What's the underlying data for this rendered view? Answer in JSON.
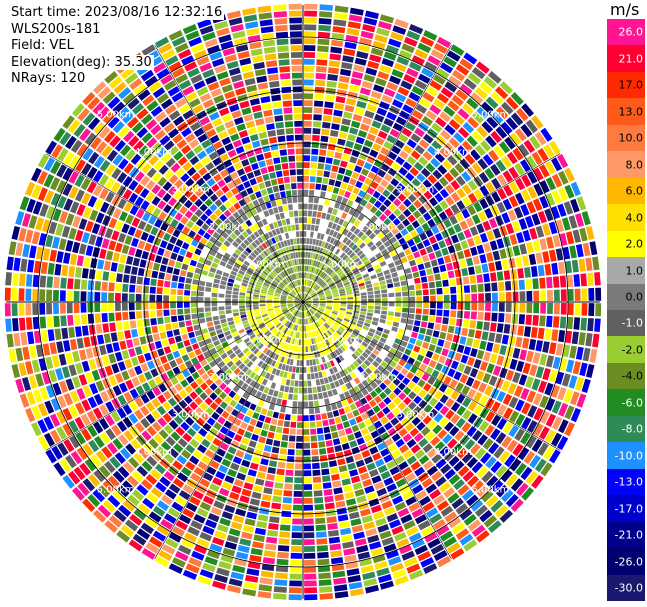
{
  "meta": {
    "start_time": "Start time: 2023/08/16 12:32:16",
    "station": "WLS200s-181",
    "field": "Field: VEL",
    "elevation": "Elevation(deg): 35.30",
    "nrays": "NRays: 120"
  },
  "chart_data": {
    "type": "heatmap",
    "projection": "polar-ppi",
    "field": "VEL",
    "unit": "m/s",
    "nrays": 120,
    "elevation_deg": 35.3,
    "range_rings_km": [
      1.0,
      2.0,
      3.0,
      4.0,
      5.0
    ],
    "range_labels": [
      "1.00km",
      "2.00km",
      "3.00km",
      "4.00km",
      "5.00km"
    ],
    "max_range_km": 5.6,
    "colorbar": {
      "labels": [
        "26.0",
        "21.0",
        "17.0",
        "13.0",
        "10.0",
        "8.0",
        "6.0",
        "4.0",
        "2.0",
        "1.0",
        "0.0",
        "-1.0",
        "-2.0",
        "-4.0",
        "-6.0",
        "-8.0",
        "-10.0",
        "-13.0",
        "-17.0",
        "-21.0",
        "-26.0",
        "-30.0"
      ],
      "colors": [
        "#ff1493",
        "#ff0033",
        "#ff2a00",
        "#ff5a1a",
        "#ff7a40",
        "#ff9a66",
        "#ffb800",
        "#ffe000",
        "#ffff00",
        "#a8a8a8",
        "#7a7a7a",
        "#606060",
        "#9acd32",
        "#6b8e23",
        "#228b22",
        "#2e8b57",
        "#1e90ff",
        "#0000ff",
        "#0000cd",
        "#00008b",
        "#000070",
        "#191970"
      ],
      "text_colors": [
        "#ffffff",
        "#ffffff",
        "#000000",
        "#000000",
        "#000000",
        "#000000",
        "#000000",
        "#000000",
        "#000000",
        "#000000",
        "#000000",
        "#ffffff",
        "#000000",
        "#000000",
        "#ffffff",
        "#ffffff",
        "#ffffff",
        "#ffffff",
        "#ffffff",
        "#ffffff",
        "#ffffff",
        "#ffffff"
      ]
    },
    "echo_zones": [
      {
        "from_km": 0.0,
        "to_km": 0.45,
        "description": "mixed green/yellow near-zero velocities"
      },
      {
        "from_km": 0.45,
        "to_km": 1.1,
        "description": "yellow and green band (approx +2 to -2 m/s)"
      },
      {
        "from_km": 1.1,
        "to_km": 2.1,
        "description": "gray/green sparse gates (~0 m/s)"
      },
      {
        "from_km": 2.1,
        "to_km": 5.6,
        "description": "noise: random velocities across full scale"
      }
    ]
  }
}
